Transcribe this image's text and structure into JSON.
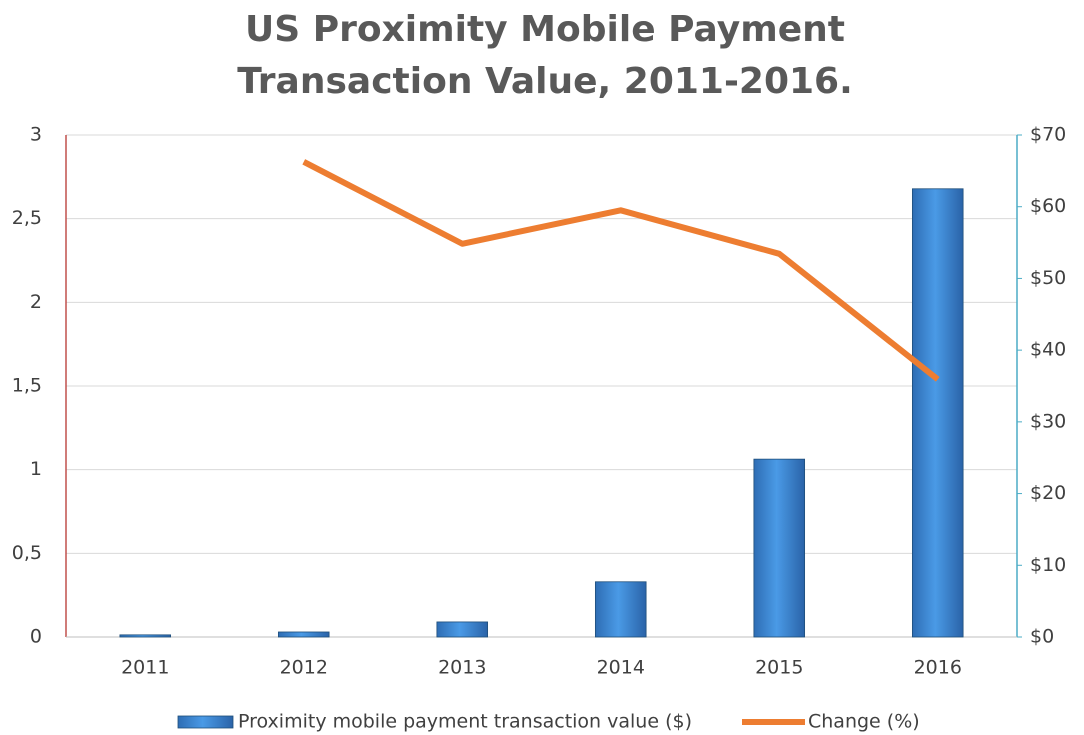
{
  "chart_data": {
    "type": "bar",
    "title": "US Proximity Mobile Payment Transaction Value, 2011-2016.",
    "categories": [
      "2011",
      "2012",
      "2013",
      "2014",
      "2015",
      "2016"
    ],
    "series": [
      {
        "name": "Proximity mobile payment transaction value ($)",
        "type": "bar",
        "axis": "y2",
        "color": "#3a86d4",
        "values": [
          0.3,
          0.7,
          2.1,
          7.7,
          24.8,
          62.5
        ]
      },
      {
        "name": "Change (%)",
        "type": "line",
        "color": "#ed7d31",
        "values": [
          null,
          2.84,
          2.35,
          2.55,
          2.29,
          1.54
        ]
      }
    ],
    "ylim": [
      0,
      3
    ],
    "yticks": [
      0,
      {
        "value": 0.5,
        "label": "0,5"
      },
      1,
      {
        "value": 1.5,
        "label": "1,5"
      },
      2,
      {
        "value": 2.5,
        "label": "2,5"
      },
      3
    ],
    "y2lim": [
      0,
      70
    ],
    "y2ticks": [
      {
        "value": 0,
        "label": "$0"
      },
      {
        "value": 10,
        "label": "$10"
      },
      {
        "value": 20,
        "label": "$20"
      },
      {
        "value": 30,
        "label": "$30"
      },
      {
        "value": 40,
        "label": "$40"
      },
      {
        "value": 50,
        "label": "$50"
      },
      {
        "value": 60,
        "label": "$60"
      },
      {
        "value": 70,
        "label": "$70"
      }
    ],
    "grid": true,
    "legend": "bottom"
  }
}
